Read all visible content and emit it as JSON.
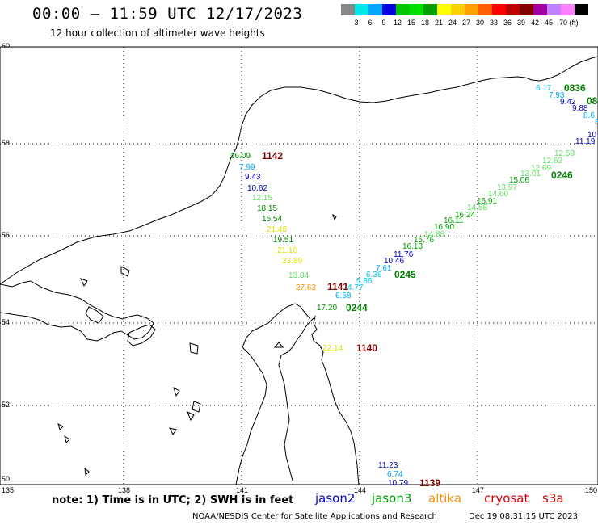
{
  "header": {
    "title": "00:00 – 11:59 UTC 12/17/2023",
    "subtitle": "12 hour collection of altimeter wave heights"
  },
  "scale": {
    "colors": [
      "#888888",
      "#00e8e8",
      "#00a8ff",
      "#0000e0",
      "#00c800",
      "#00e000",
      "#00a000",
      "#ffff00",
      "#ffd000",
      "#ffa000",
      "#ff6000",
      "#ff0000",
      "#c00000",
      "#800000",
      "#a000a0",
      "#c080ff",
      "#ff80ff",
      "#000000"
    ],
    "labels": [
      "3",
      "6",
      "9",
      "12",
      "15",
      "18",
      "21",
      "24",
      "27",
      "30",
      "33",
      "36",
      "39",
      "42",
      "45",
      "70 (ft)"
    ]
  },
  "axes": {
    "lat_labels": [
      "60",
      "58",
      "56",
      "54",
      "52",
      "50"
    ],
    "lon_labels": [
      "135",
      "138",
      "141",
      "144",
      "147",
      "150"
    ]
  },
  "passes": [
    {
      "id": "0836",
      "label": "0836",
      "color": "#008000"
    },
    {
      "id": "08",
      "label": "08",
      "color": "#008000"
    },
    {
      "id": "1142",
      "label": "1142",
      "color": "#800000"
    },
    {
      "id": "0246",
      "label": "0246",
      "color": "#008000"
    },
    {
      "id": "0245",
      "label": "0245",
      "color": "#008000"
    },
    {
      "id": "1141",
      "label": "1141",
      "color": "#800000"
    },
    {
      "id": "0244",
      "label": "0244",
      "color": "#008000"
    },
    {
      "id": "1140",
      "label": "1140",
      "color": "#800000"
    },
    {
      "id": "1139",
      "label": "1139",
      "color": "#800000"
    }
  ],
  "observations": [
    {
      "v": "6.17",
      "c": "#00c8e8"
    },
    {
      "v": "7.93",
      "c": "#00a8ff"
    },
    {
      "v": "9.42",
      "c": "#0000c0"
    },
    {
      "v": "9.88",
      "c": "#0000c0"
    },
    {
      "v": "8.6",
      "c": "#00a8ff"
    },
    {
      "v": "8",
      "c": "#00a8ff"
    },
    {
      "v": "10",
      "c": "#0000c0"
    },
    {
      "v": "11.19",
      "c": "#0000c0"
    },
    {
      "v": "12.59",
      "c": "#60e060"
    },
    {
      "v": "12.62",
      "c": "#60e060"
    },
    {
      "v": "12.69",
      "c": "#60e060"
    },
    {
      "v": "13.01",
      "c": "#60e060"
    },
    {
      "v": "15.06",
      "c": "#00a000"
    },
    {
      "v": "13.97",
      "c": "#60e060"
    },
    {
      "v": "14.60",
      "c": "#60e060"
    },
    {
      "v": "14.58",
      "c": "#60e060"
    },
    {
      "v": "15.91",
      "c": "#00a000"
    },
    {
      "v": "16.24",
      "c": "#00a000"
    },
    {
      "v": "16.11",
      "c": "#00a000"
    },
    {
      "v": "16.90",
      "c": "#00a000"
    },
    {
      "v": "14.88",
      "c": "#60e060"
    },
    {
      "v": "15.76",
      "c": "#00a000"
    },
    {
      "v": "16.13",
      "c": "#00a000"
    },
    {
      "v": "11.76",
      "c": "#0000c0"
    },
    {
      "v": "10.46",
      "c": "#0000c0"
    },
    {
      "v": "7.61",
      "c": "#00a8ff"
    },
    {
      "v": "5.86",
      "c": "#00c8e8"
    },
    {
      "v": "6.36",
      "c": "#00c8e8"
    },
    {
      "v": "4.77",
      "c": "#00c8e8"
    },
    {
      "v": "6.58",
      "c": "#00a8ff"
    },
    {
      "v": "16.09",
      "c": "#00a000"
    },
    {
      "v": "7.99",
      "c": "#00a8ff"
    },
    {
      "v": "9.43",
      "c": "#0000c0"
    },
    {
      "v": "10.62",
      "c": "#0000c0"
    },
    {
      "v": "12.15",
      "c": "#60e060"
    },
    {
      "v": "18.15",
      "c": "#008000"
    },
    {
      "v": "16.54",
      "c": "#008000"
    },
    {
      "v": "21.48",
      "c": "#e0e000"
    },
    {
      "v": "19.51",
      "c": "#008000"
    },
    {
      "v": "21.10",
      "c": "#e0e000"
    },
    {
      "v": "23.89",
      "c": "#e0e000"
    },
    {
      "v": "13.84",
      "c": "#60e060"
    },
    {
      "v": "27.63",
      "c": "#ff9000"
    },
    {
      "v": "17.20",
      "c": "#00a000"
    },
    {
      "v": "22.14",
      "c": "#e0e000"
    },
    {
      "v": "11.23",
      "c": "#0000c0"
    },
    {
      "v": "6.74",
      "c": "#00a8ff"
    },
    {
      "v": "10.79",
      "c": "#0000c0"
    }
  ],
  "legend": {
    "note": "note:  1) Time is in UTC; 2) SWH is in feet",
    "missions": [
      {
        "name": "jason2",
        "color": "#0000e0"
      },
      {
        "name": "jason3",
        "color": "#00a000"
      },
      {
        "name": "altika",
        "color": "#ff9000"
      },
      {
        "name": "cryosat",
        "color": "#e00000"
      },
      {
        "name": "s3a",
        "color": "#c00000"
      }
    ]
  },
  "footer": {
    "source": "NOAA/NESDIS Center for Satellite Applications and Research",
    "timestamp": "Dec 19 08:31:15 UTC 2023"
  }
}
